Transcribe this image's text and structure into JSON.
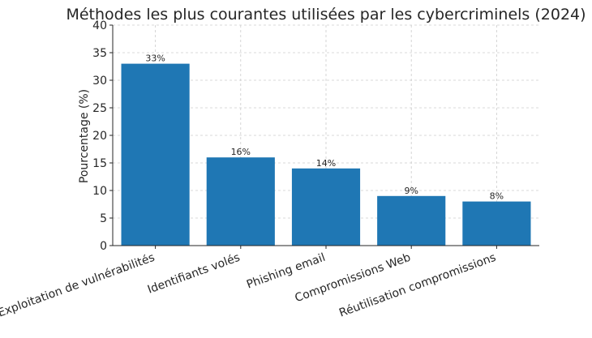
{
  "chart_data": {
    "type": "bar",
    "title": "Méthodes les plus courantes utilisées par les cybercriminels (2024)",
    "xlabel": "",
    "ylabel": "Pourcentage (%)",
    "categories": [
      "Exploitation de vulnérabilités",
      "Identifiants volés",
      "Phishing email",
      "Compromissions Web",
      "Réutilisation compromissions"
    ],
    "values": [
      33,
      16,
      14,
      9,
      8
    ],
    "data_labels": [
      "33%",
      "16%",
      "14%",
      "9%",
      "8%"
    ],
    "ylim": [
      0,
      40
    ],
    "yticks": [
      0,
      5,
      10,
      15,
      20,
      25,
      30,
      35,
      40
    ],
    "grid": true,
    "bar_color": "#1f77b4"
  }
}
